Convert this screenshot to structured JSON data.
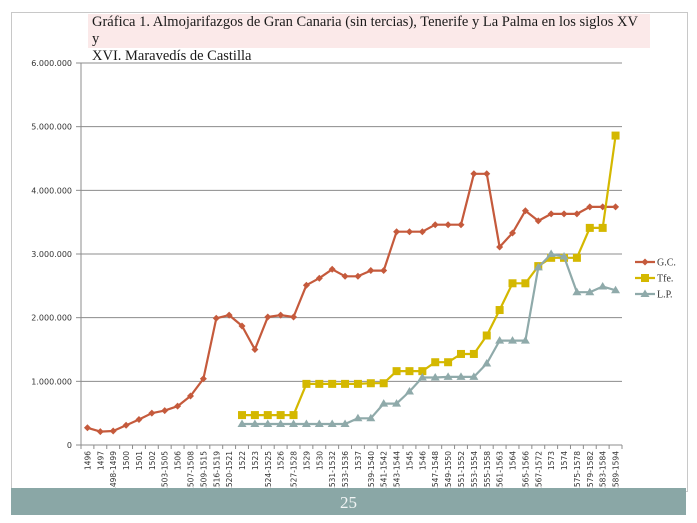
{
  "page_number": "25",
  "chart_data": {
    "type": "line",
    "title": "Gráfica 1. Almojarifazgos de Gran Canaria (sin tercias), Tenerife y La Palma en los siglos XV y XVI. Maravedís de Castilla",
    "title_line1": "Gráfica 1. Almojarifazgos de Gran Canaria (sin tercias), Tenerife y La Palma en los siglos XV y",
    "title_line2": "XVI. Maravedís de Castilla",
    "xlabel": "",
    "ylabel": "",
    "ylim": [
      0,
      6000000
    ],
    "yticks": [
      0,
      1000000,
      2000000,
      3000000,
      4000000,
      5000000,
      6000000
    ],
    "ytick_labels": [
      "0",
      "1.000.000",
      "2.000.000",
      "3.000.000",
      "4.000.000",
      "5.000.000",
      "6.000.000"
    ],
    "grid": "horizontal",
    "legend_position": "right",
    "categories": [
      "1496",
      "1497",
      "1498-1499",
      "1500",
      "1501",
      "1502",
      "1503-1505",
      "1506",
      "1507-1508",
      "1509-1515",
      "1516-1519",
      "1520-1521",
      "1522",
      "1523",
      "1524-1525",
      "1526",
      "1527-1528",
      "1529",
      "1530",
      "1531-1532",
      "1533-1536",
      "1537",
      "1539-1540",
      "1541-1542",
      "1543-1544",
      "1545",
      "1546",
      "1547-1548",
      "1549-1550",
      "1551-1552",
      "1553-1554",
      "1555-1558",
      "1561-1563",
      "1564",
      "1565-1566",
      "1567-1572",
      "1573",
      "1574",
      "1575-1578",
      "1579-1582",
      "1583-1584",
      "1589-1594"
    ],
    "series": [
      {
        "name": "G.C.",
        "color": "#c55a3c",
        "marker": "diamond",
        "values": [
          270000,
          210000,
          220000,
          310000,
          400000,
          500000,
          540000,
          610000,
          770000,
          1040000,
          1990000,
          2040000,
          1870000,
          1500000,
          2010000,
          2040000,
          2010000,
          2510000,
          2620000,
          2760000,
          2650000,
          2650000,
          2740000,
          2740000,
          3350000,
          3350000,
          3350000,
          3460000,
          3460000,
          3460000,
          4260000,
          4260000,
          3110000,
          3330000,
          3680000,
          3520000,
          3630000,
          3630000,
          3630000,
          3740000,
          3740000,
          3740000
        ]
      },
      {
        "name": "Tfe.",
        "color": "#d4b800",
        "marker": "square",
        "values": [
          null,
          null,
          null,
          null,
          null,
          null,
          null,
          null,
          null,
          null,
          null,
          null,
          470000,
          470000,
          470000,
          470000,
          470000,
          960000,
          960000,
          960000,
          960000,
          960000,
          970000,
          970000,
          1160000,
          1160000,
          1160000,
          1300000,
          1300000,
          1430000,
          1430000,
          1720000,
          2120000,
          2540000,
          2540000,
          2810000,
          2940000,
          2940000,
          2940000,
          3410000,
          3410000,
          4860000
        ]
      },
      {
        "name": "L.P.",
        "color": "#8faaaa",
        "marker": "triangle",
        "values": [
          null,
          null,
          null,
          null,
          null,
          null,
          null,
          null,
          null,
          null,
          null,
          null,
          330000,
          330000,
          330000,
          330000,
          330000,
          330000,
          330000,
          330000,
          330000,
          420000,
          420000,
          650000,
          650000,
          840000,
          1060000,
          1060000,
          1070000,
          1070000,
          1070000,
          1280000,
          1640000,
          1640000,
          1640000,
          2790000,
          3000000,
          2960000,
          2400000,
          2400000,
          2490000,
          2430000
        ]
      }
    ]
  }
}
